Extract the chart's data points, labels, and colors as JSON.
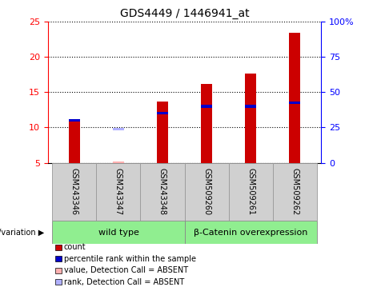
{
  "title": "GDS4449 / 1446941_at",
  "samples": [
    "GSM243346",
    "GSM243347",
    "GSM243348",
    "GSM509260",
    "GSM509261",
    "GSM509262"
  ],
  "count_values": [
    11.0,
    5.2,
    13.7,
    16.1,
    17.6,
    23.4
  ],
  "rank_values_left_scale": [
    11.0,
    9.8,
    12.0,
    13.0,
    13.0,
    13.5
  ],
  "absent_flags": [
    false,
    true,
    false,
    false,
    false,
    false
  ],
  "groups": [
    {
      "label": "wild type",
      "start": 0,
      "end": 3,
      "color": "#90ee90"
    },
    {
      "label": "β-Catenin overexpression",
      "start": 3,
      "end": 6,
      "color": "#90ee90"
    }
  ],
  "ylim": [
    5,
    25
  ],
  "yticks_left": [
    5,
    10,
    15,
    20,
    25
  ],
  "yticks_right": [
    0,
    25,
    50,
    75,
    100
  ],
  "right_ylim": [
    0,
    100
  ],
  "count_color": "#cc0000",
  "rank_color": "#0000cc",
  "absent_count_color": "#ffb0b0",
  "absent_rank_color": "#b0b0ff",
  "cell_bg": "#d0d0d0",
  "plot_bg": "#ffffff",
  "genotype_label": "genotype/variation",
  "legend_items": [
    {
      "label": "count",
      "color": "#cc0000"
    },
    {
      "label": "percentile rank within the sample",
      "color": "#0000cc"
    },
    {
      "label": "value, Detection Call = ABSENT",
      "color": "#ffb0b0"
    },
    {
      "label": "rank, Detection Call = ABSENT",
      "color": "#b0b0ff"
    }
  ]
}
